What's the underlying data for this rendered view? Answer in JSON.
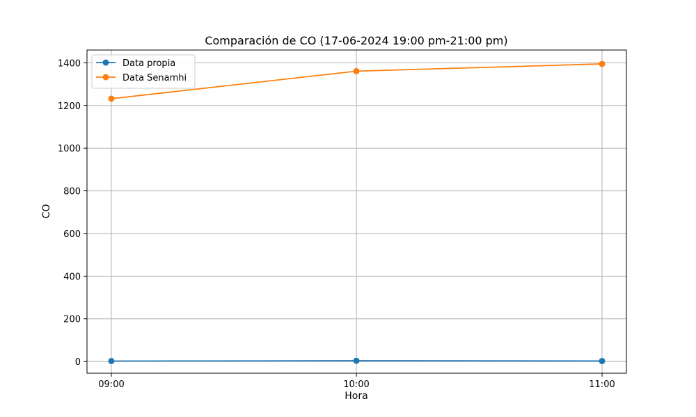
{
  "chart_data": {
    "type": "line",
    "title": "Comparación de CO (17-06-2024 19:00 pm-21:00 pm)",
    "xlabel": "Hora",
    "ylabel": "CO",
    "categories": [
      "09:00",
      "10:00",
      "11:00"
    ],
    "ylim": [
      -55,
      1460
    ],
    "yticks": [
      0,
      200,
      400,
      600,
      800,
      1000,
      1200,
      1400
    ],
    "grid": true,
    "legend_position": "upper-left",
    "series": [
      {
        "name": "Data propia",
        "color": "#1f77b4",
        "values": [
          2.1,
          3.4,
          2.2
        ]
      },
      {
        "name": "Data Senamhi",
        "color": "#ff7f0e",
        "values": [
          1232,
          1361,
          1395
        ]
      }
    ]
  }
}
